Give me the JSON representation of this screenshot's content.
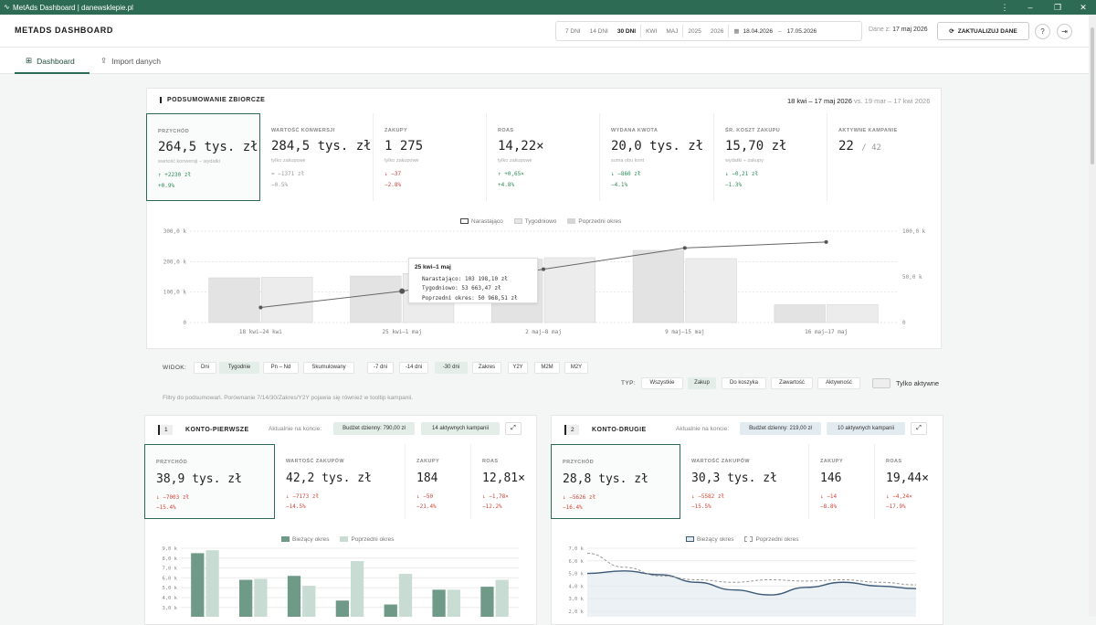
{
  "window": {
    "title": "MetAds Dashboard | danewsklepie.pl",
    "icon": "metads-logo-icon",
    "controls": [
      "more-icon",
      "minimize-icon",
      "maximize-icon",
      "close-icon"
    ]
  },
  "header": {
    "brand": "METADS DASHBOARD",
    "range_buttons": [
      "7 DNI",
      "14 DNI",
      "30 DNI",
      "KWI",
      "MAJ",
      "2025",
      "2026"
    ],
    "active_range": "30 DNI",
    "date_from": "18.04.2026",
    "date_sep": "–",
    "date_to": "17.05.2026",
    "data_label": "Dane z:",
    "data_date": "17 maj 2026",
    "update_label": "ZAKTUALIZUJ DANE",
    "help": "?",
    "logout_icon": "logout-icon"
  },
  "nav": {
    "tabs": [
      {
        "label": "Dashboard",
        "icon": "grid-icon"
      },
      {
        "label": "Import danych",
        "icon": "upload-icon"
      }
    ],
    "active": "Dashboard"
  },
  "summary": {
    "title": "PODSUMOWANIE ZBIORCZE",
    "range": "18 kwi – 17 maj 2026",
    "vs": "vs. 19 mar – 17 kwi 2026",
    "kpis": [
      {
        "label": "PRZYCHÓD",
        "value": "264,5 tys. zł",
        "note": "wartość konwersji − wydatki",
        "d1": "↑ +2230 zł",
        "d2": "+0.9%",
        "dir": "up"
      },
      {
        "label": "WARTOŚĆ KONWERSJI",
        "value": "284,5 tys. zł",
        "note": "tylko zakupowe",
        "d1": "= −1371 zł",
        "d2": "−0.5%",
        "dir": "neu"
      },
      {
        "label": "ZAKUPY",
        "value": "1 275",
        "note": "tylko zakupowe",
        "d1": "↓ −37",
        "d2": "−2.8%",
        "dir": "down"
      },
      {
        "label": "ROAS",
        "value": "14,22×",
        "note": "tylko zakupowe",
        "d1": "↑ +0,65×",
        "d2": "+4.8%",
        "dir": "up"
      },
      {
        "label": "WYDANA KWOTA",
        "value": "20,0 tys. zł",
        "note": "suma obu kont",
        "d1": "↓ −860 zł",
        "d2": "−4.1%",
        "dir": "up"
      },
      {
        "label": "ŚR. KOSZT ZAKUPU",
        "value": "15,70 zł",
        "note": "wydatki ÷ zakupy",
        "d1": "↓ −0,21 zł",
        "d2": "−1.3%",
        "dir": "up"
      },
      {
        "label": "AKTYWNE KAMPANIE",
        "value": "22",
        "sub": "/ 42"
      }
    ]
  },
  "main_chart": {
    "legend": [
      "Narastająco",
      "Tygodniowo",
      "Poprzedni okres"
    ],
    "tooltip": {
      "title": "25 kwi–1 maj",
      "lines": [
        "Narastająco: 103 198,10 zł",
        "Tygodniowo: 53 663,47 zł",
        "Poprzedni okres: 50 968,51 zł"
      ]
    }
  },
  "chart_data": [
    {
      "type": "bar",
      "title": "",
      "xlabel": "",
      "ylabel": "",
      "categories": [
        "18 kwi–24 kwi",
        "25 kwi–1 maj",
        "2 maj–8 maj",
        "9 maj–15 maj",
        "16 maj–17 maj"
      ],
      "left_ticks": [
        "300,0 k",
        "200,0 k",
        "100,0 k",
        "0"
      ],
      "right_ticks": [
        "100,0 k",
        "50,0 k",
        "0"
      ],
      "ylim": [
        0,
        300000
      ],
      "y2lim": [
        0,
        100000
      ],
      "series": [
        {
          "name": "Narastająco",
          "type": "line",
          "axis": "left",
          "values": [
            49500,
            103198,
            175000,
            245000,
            264500
          ]
        },
        {
          "name": "Tygodniowo",
          "type": "bar",
          "axis": "right",
          "values": [
            49500,
            53663,
            71000,
            70000,
            19500
          ]
        },
        {
          "name": "Poprzedni okres",
          "type": "bar",
          "axis": "right",
          "values": [
            49000,
            50968,
            69500,
            79000,
            19500
          ]
        }
      ]
    },
    {
      "type": "bar",
      "title": "",
      "ylim": [
        0,
        9000
      ],
      "yticks": [
        "9,0 k",
        "8,0 k",
        "7,0 k",
        "6,0 k",
        "5,0 k",
        "4,0 k",
        "3,0 k"
      ],
      "series": [
        {
          "name": "Bieżący okres",
          "values": [
            8500,
            5800,
            6200,
            3700,
            3300,
            4800,
            5100
          ]
        },
        {
          "name": "Poprzedni okres",
          "values": [
            8800,
            5900,
            5200,
            7700,
            6400,
            4800,
            5800
          ]
        }
      ]
    },
    {
      "type": "line",
      "title": "",
      "ylim": [
        2000,
        7000
      ],
      "yticks": [
        "7,0 k",
        "6,0 k",
        "5,0 k",
        "4,0 k",
        "3,0 k",
        "2,0 k"
      ],
      "series": [
        {
          "name": "Bieżący okres",
          "values": [
            5000,
            5200,
            4900,
            4300,
            3700,
            3300,
            3900,
            4300,
            4000,
            3800
          ]
        },
        {
          "name": "Poprzedni okres",
          "values": [
            6600,
            5500,
            4800,
            4500,
            4300,
            4500,
            4400,
            4500,
            4300,
            4100
          ]
        }
      ]
    }
  ],
  "controls": {
    "view_label": "WIDOK:",
    "view": [
      "Dni",
      "Tygodnie",
      "Pn – Nd",
      "Skumulowany"
    ],
    "view_active": "Tygodnie",
    "period": [
      "-7 dni",
      "-14 dni",
      "-30 dni",
      "Zakres",
      "Y2Y",
      "M2M",
      "M2Y"
    ],
    "period_active": "-30 dni",
    "type_label": "TYP:",
    "types": [
      "Wszystkie",
      "Zakup",
      "Do koszyka",
      "Zawartość",
      "Aktywność"
    ],
    "type_active": "Zakup",
    "only_active": "Tylko aktywne",
    "filter_note": "Filtry do podsumowań. Porównanie 7/14/30/Zakres/Y2Y pojawia się również w tooltip kampanii."
  },
  "accounts": [
    {
      "num": "1",
      "name": "KONTO-PIERWSZE",
      "status_label": "Aktualnie na koncie:",
      "budget": "Budżet dzienny: 790,00 zł",
      "campaigns": "14 aktywnych kampanii",
      "kpis": [
        {
          "label": "PRZYCHÓD",
          "value": "38,9 tys. zł",
          "d1": "↓ −7003 zł",
          "d2": "−15.4%"
        },
        {
          "label": "WARTOŚĆ ZAKUPÓW",
          "value": "42,2 tys. zł",
          "d1": "↓ −7173 zł",
          "d2": "−14.5%"
        },
        {
          "label": "ZAKUPY",
          "value": "184",
          "d1": "↓ −50",
          "d2": "−21.4%"
        },
        {
          "label": "ROAS",
          "value": "12,81×",
          "d1": "↓ −1,78×",
          "d2": "−12.2%"
        }
      ],
      "legend": [
        "Bieżący okres",
        "Poprzedni okres"
      ]
    },
    {
      "num": "2",
      "name": "KONTO-DRUGIE",
      "status_label": "Aktualnie na koncie:",
      "budget": "Budżet dzienny: 219,00 zł",
      "campaigns": "10 aktywnych kampanii",
      "kpis": [
        {
          "label": "PRZYCHÓD",
          "value": "28,8 tys. zł",
          "d1": "↓ −5626 zł",
          "d2": "−16.4%"
        },
        {
          "label": "WARTOŚĆ ZAKUPÓW",
          "value": "30,3 tys. zł",
          "d1": "↓ −5582 zł",
          "d2": "−15.5%"
        },
        {
          "label": "ZAKUPY",
          "value": "146",
          "d1": "↓ −14",
          "d2": "−8.8%"
        },
        {
          "label": "ROAS",
          "value": "19,44×",
          "d1": "↓ −4,24×",
          "d2": "−17.9%"
        }
      ],
      "legend": [
        "Bieżący okres",
        "Poprzedni okres"
      ]
    }
  ],
  "colors": {
    "accent": "#2e6b55",
    "up": "#2e8b57",
    "down": "#d0453a",
    "bar_current": "#6f9a88",
    "bar_prev": "#c9dcd3",
    "line_current": "#3d5a78"
  }
}
